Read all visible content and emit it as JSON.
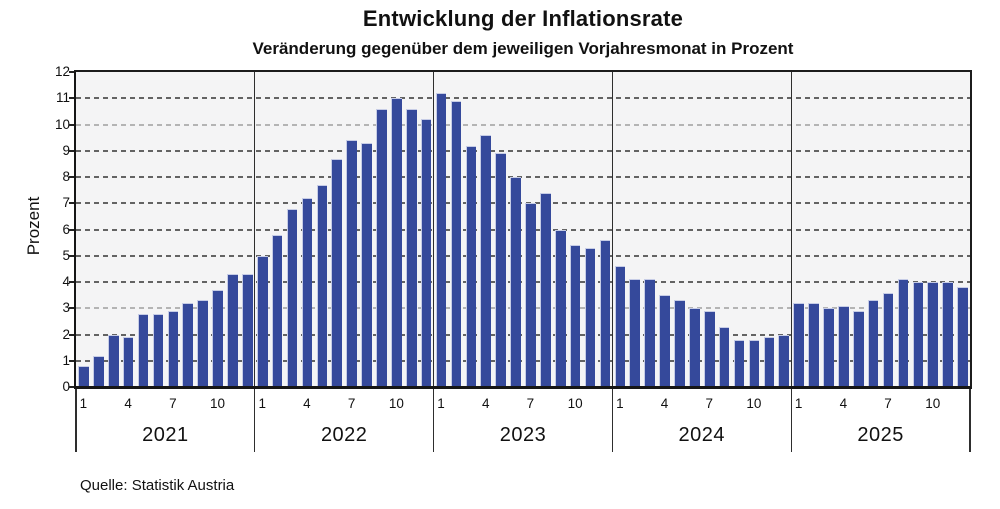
{
  "title": "Entwicklung der Inflationsrate",
  "subtitle": "Veränderung gegenüber dem jeweiligen Vorjahresmonat in Prozent",
  "source": "Quelle: Statistik Austria",
  "chart_data": {
    "type": "bar",
    "title": "Entwicklung der Inflationsrate",
    "subtitle": "Veränderung gegenüber dem jeweiligen Vorjahresmonat in Prozent",
    "ylabel": "Prozent",
    "xlabel": "",
    "ylim": [
      0,
      12
    ],
    "yticks": [
      0,
      1,
      2,
      3,
      4,
      5,
      6,
      7,
      8,
      9,
      10,
      11,
      12
    ],
    "grid": "horizontal-dashed",
    "light_gridlines": [
      3,
      10
    ],
    "month_tick_positions": [
      1,
      4,
      7,
      10
    ],
    "month_tick_labels": [
      "1",
      "4",
      "7",
      "10"
    ],
    "bar_color": "#35499b",
    "plot_background": "#f4f4f5",
    "legend_position": "none",
    "series": [
      {
        "year": "2021",
        "values": [
          0.8,
          1.2,
          2.0,
          1.9,
          2.8,
          2.8,
          2.9,
          3.2,
          3.3,
          3.7,
          4.3,
          4.3
        ]
      },
      {
        "year": "2022",
        "values": [
          5.0,
          5.8,
          6.8,
          7.2,
          7.7,
          8.7,
          9.4,
          9.3,
          10.6,
          11.0,
          10.6,
          10.2
        ]
      },
      {
        "year": "2023",
        "values": [
          11.2,
          10.9,
          9.2,
          9.6,
          8.9,
          8.0,
          7.0,
          7.4,
          6.0,
          5.4,
          5.3,
          5.6
        ]
      },
      {
        "year": "2024",
        "values": [
          4.6,
          4.1,
          4.1,
          3.5,
          3.3,
          3.0,
          2.9,
          2.3,
          1.8,
          1.8,
          1.9,
          2.0
        ]
      },
      {
        "year": "2025",
        "values": [
          3.2,
          3.2,
          3.0,
          3.1,
          2.9,
          3.3,
          3.6,
          4.1,
          4.0,
          4.0,
          4.0,
          3.8
        ]
      }
    ]
  }
}
